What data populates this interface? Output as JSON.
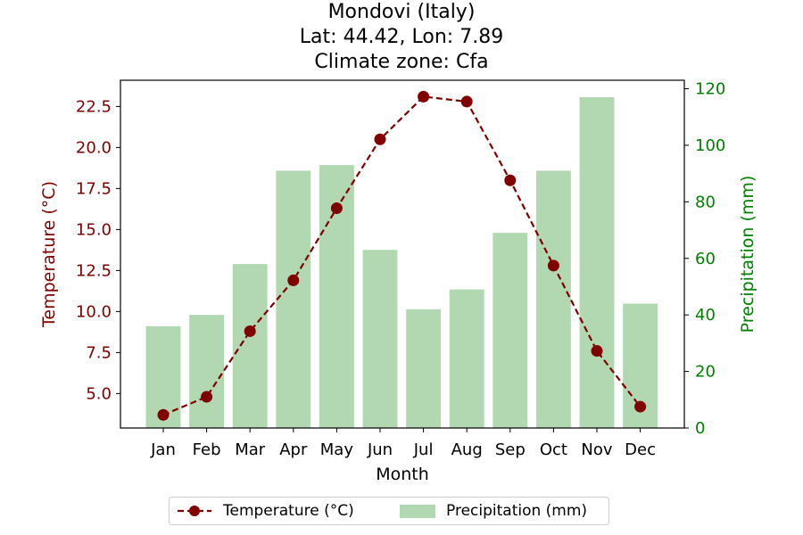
{
  "title": {
    "line1": "Mondovi (Italy)",
    "line2": "Lat: 44.42, Lon: 7.89",
    "line3": "Climate zone: Cfa"
  },
  "colors": {
    "temperature": "#800000",
    "precipitation": "#008000",
    "precipitation_bar": "#b2d8b2"
  },
  "chart_data": {
    "type": "bar+line",
    "xlabel": "Month",
    "ylabel_left": "Temperature (°C)",
    "ylabel_right": "Precipitation (mm)",
    "categories": [
      "Jan",
      "Feb",
      "Mar",
      "Apr",
      "May",
      "Jun",
      "Jul",
      "Aug",
      "Sep",
      "Oct",
      "Nov",
      "Dec"
    ],
    "temperature": [
      3.7,
      4.8,
      8.8,
      11.9,
      16.3,
      20.5,
      23.1,
      22.8,
      18.0,
      12.8,
      7.6,
      4.2
    ],
    "precipitation": [
      36,
      40,
      58,
      91,
      93,
      63,
      42,
      49,
      69,
      91,
      117,
      44
    ],
    "ylim_left": [
      2.9,
      24.1
    ],
    "ylim_right": [
      0,
      123
    ],
    "yticks_left": [
      "5.0",
      "7.5",
      "10.0",
      "12.5",
      "15.0",
      "17.5",
      "20.0",
      "22.5"
    ],
    "yticks_right": [
      "0",
      "20",
      "40",
      "60",
      "80",
      "100",
      "120"
    ],
    "grid": false,
    "legend": {
      "position": "bottom-center",
      "entries": [
        "Temperature (°C)",
        "Precipitation (mm)"
      ]
    }
  }
}
